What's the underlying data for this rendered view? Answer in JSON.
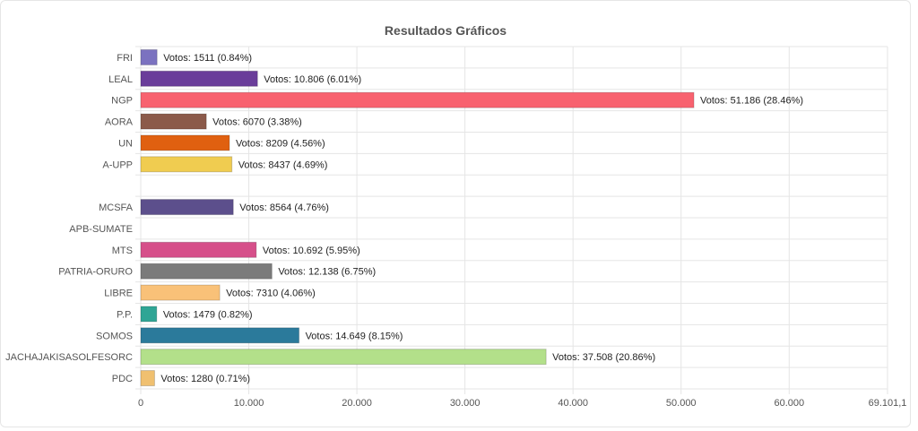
{
  "chart_data": {
    "type": "bar",
    "orientation": "horizontal",
    "title": "Resultados Gráficos",
    "xlabel": "",
    "ylabel": "",
    "xlim": [
      0,
      69101.1
    ],
    "x_ticks": [
      0,
      10000,
      20000,
      30000,
      40000,
      50000,
      60000,
      69101.1
    ],
    "x_tick_labels": [
      "0",
      "10.000",
      "20.000",
      "30.000",
      "40.000",
      "50.000",
      "60.000",
      "69.101,1"
    ],
    "grid": true,
    "legend": "none",
    "categories": [
      "FRI",
      "LEAL",
      "NGP",
      "AORA",
      "UN",
      "A-UPP",
      "",
      "MCSFA",
      "APB-SUMATE",
      "MTS",
      "PATRIA-ORURO",
      "LIBRE",
      "P.P.",
      "SOMOS",
      "JACHAJAKISASOLFESORC",
      "PDC"
    ],
    "values": [
      1511,
      10806,
      51186,
      6070,
      8209,
      8437,
      null,
      8564,
      0,
      10692,
      12138,
      7310,
      1479,
      14649,
      37508,
      1280
    ],
    "data_labels": [
      "Votos: 1511 (0.84%)",
      "Votos: 10.806 (6.01%)",
      "Votos: 51.186 (28.46%)",
      "Votos: 6070 (3.38%)",
      "Votos: 8209 (4.56%)",
      "Votos: 8437 (4.69%)",
      "",
      "Votos: 8564 (4.76%)",
      "",
      "Votos: 10.692 (5.95%)",
      "Votos: 12.138 (6.75%)",
      "Votos: 7310 (4.06%)",
      "Votos: 1479 (0.82%)",
      "Votos: 14.649 (8.15%)",
      "Votos: 37.508 (20.86%)",
      "Votos: 1280 (0.71%)"
    ],
    "colors": [
      "#7b72c0",
      "#6a3d9a",
      "#f8626f",
      "#8b5a4a",
      "#e06010",
      "#f0cc50",
      "",
      "#5c4f8c",
      "",
      "#d64f8a",
      "#7b7b7b",
      "#f9c178",
      "#2fa595",
      "#2b7a9b",
      "#b3e08a",
      "#f0c070"
    ]
  }
}
